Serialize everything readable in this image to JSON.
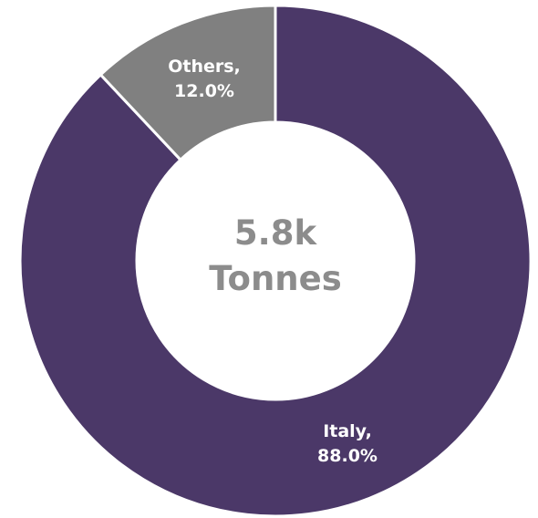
{
  "chart_data": {
    "type": "pie",
    "variant": "donut",
    "center_label": {
      "value": "5.8k",
      "unit": "Tonnes"
    },
    "slices": [
      {
        "name": "Italy",
        "value": 88.0,
        "label": "Italy,",
        "value_label": "88.0%",
        "color": "#4b3868"
      },
      {
        "name": "Others",
        "value": 12.0,
        "label": "Others,",
        "value_label": "12.0%",
        "color": "#808080"
      }
    ],
    "start_position": "top",
    "direction": "clockwise",
    "separator_color": "#ffffff"
  }
}
